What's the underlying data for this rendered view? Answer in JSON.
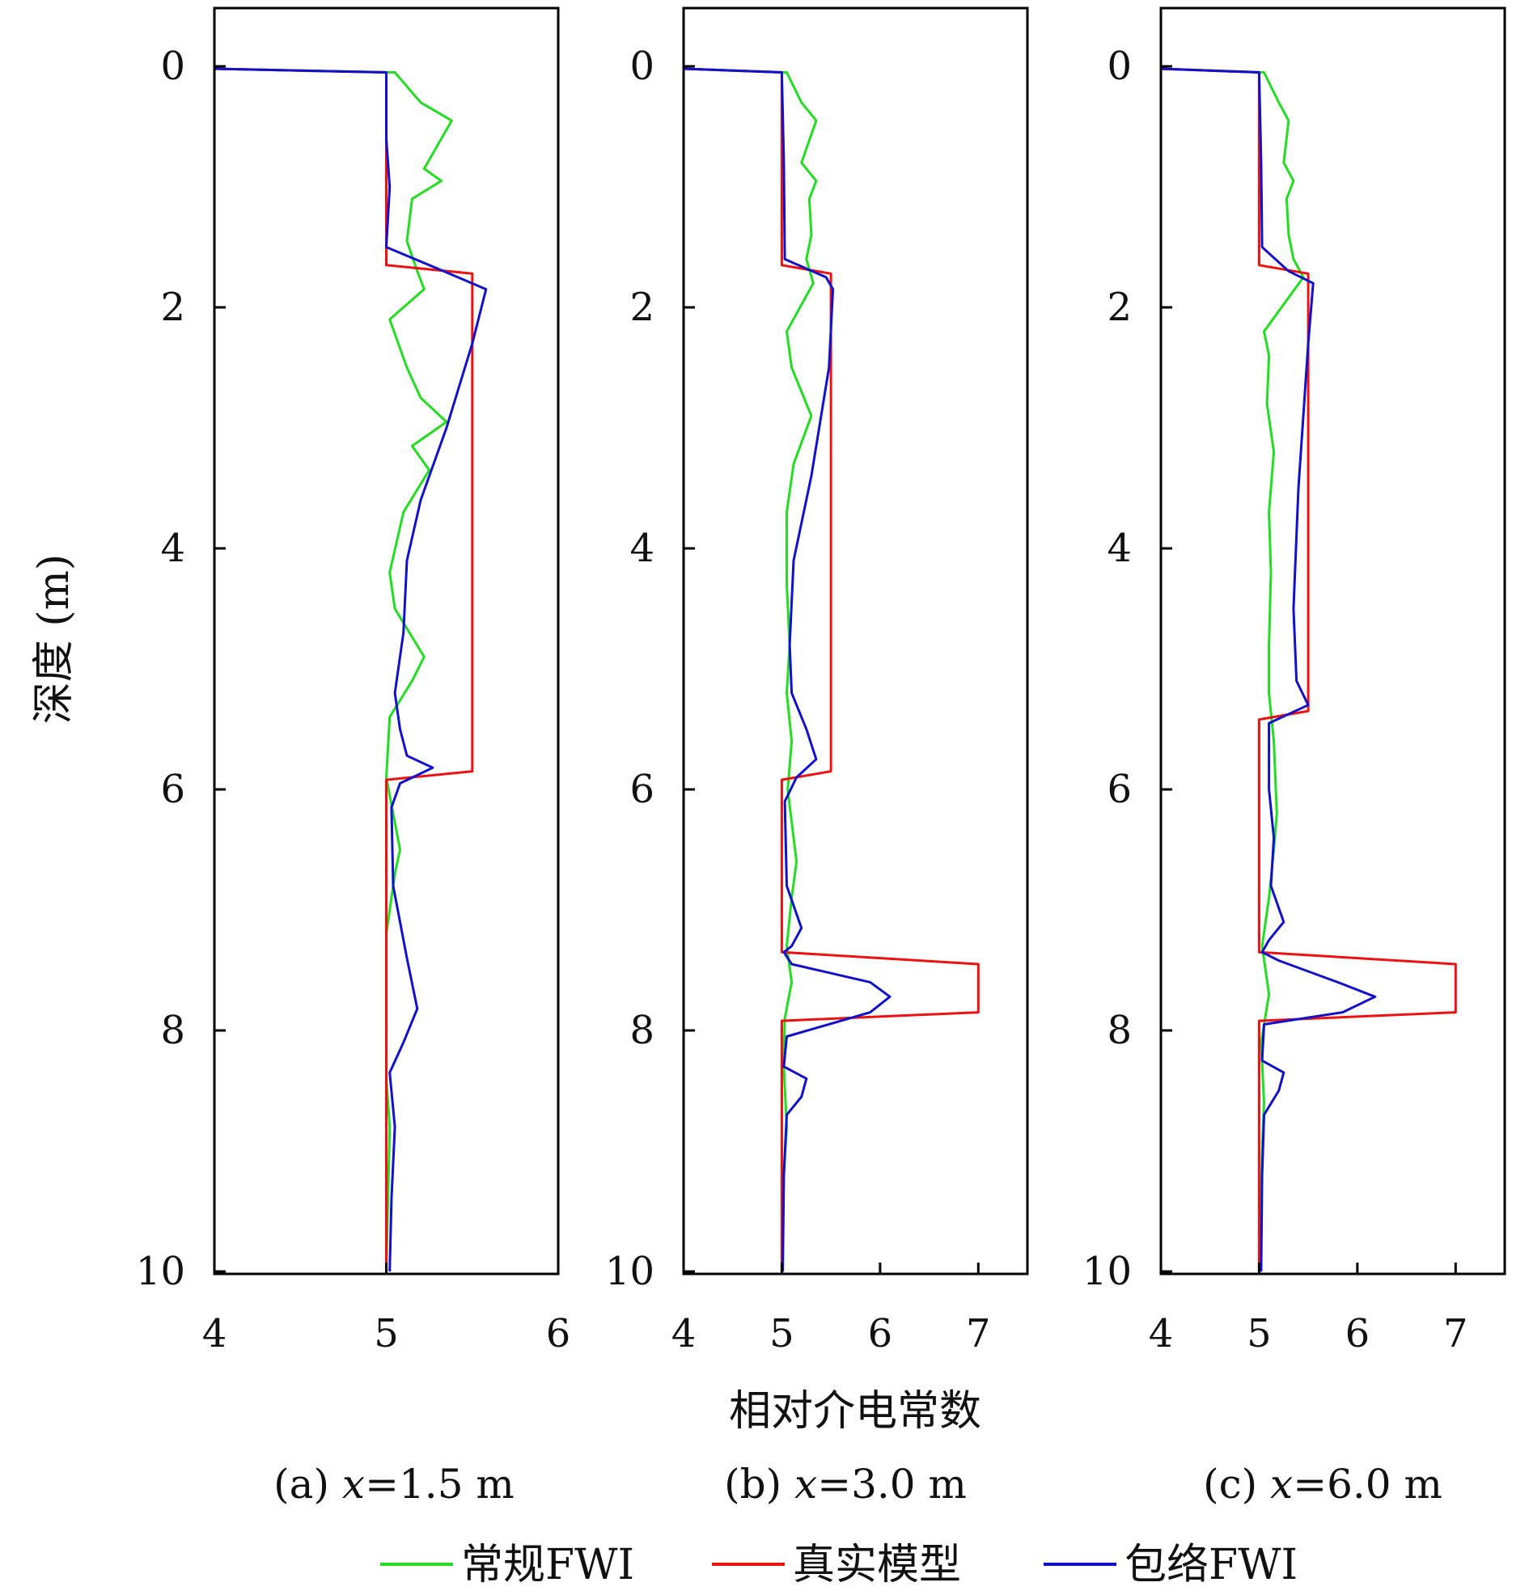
{
  "figure": {
    "ylabel": "深度 (m)",
    "xlabel": "相对介电常数",
    "legend": [
      {
        "label": "常规FWI",
        "color": "#22dd22"
      },
      {
        "label": "真实模型",
        "color": "#ee1111"
      },
      {
        "label": "包络FWI",
        "color": "#1111cc"
      }
    ]
  },
  "chart_data": [
    {
      "type": "line",
      "caption_prefix": "(a) ",
      "caption_var": "x",
      "caption_suffix": "=1.5 m",
      "xlim": [
        4,
        6
      ],
      "xticks": [
        "4",
        "5",
        "6"
      ],
      "ylim": [
        0,
        10
      ],
      "yticks": [
        "0",
        "2",
        "4",
        "6",
        "8",
        "10"
      ],
      "series": [
        {
          "name": "真实模型",
          "color": "#ee1111",
          "points": [
            [
              4,
              0.02
            ],
            [
              5,
              0.05
            ],
            [
              5,
              1.65
            ],
            [
              5.5,
              1.72
            ],
            [
              5.5,
              5.85
            ],
            [
              5,
              5.92
            ],
            [
              5,
              10
            ]
          ]
        },
        {
          "name": "包络FWI",
          "color": "#1111cc",
          "points": [
            [
              4,
              0.02
            ],
            [
              5,
              0.05
            ],
            [
              5,
              0.6
            ],
            [
              5.02,
              1.0
            ],
            [
              5,
              1.5
            ],
            [
              5.3,
              1.68
            ],
            [
              5.58,
              1.85
            ],
            [
              5.5,
              2.3
            ],
            [
              5.35,
              3.0
            ],
            [
              5.2,
              3.6
            ],
            [
              5.12,
              4.1
            ],
            [
              5.1,
              4.7
            ],
            [
              5.05,
              5.2
            ],
            [
              5.08,
              5.5
            ],
            [
              5.12,
              5.72
            ],
            [
              5.27,
              5.82
            ],
            [
              5.08,
              5.95
            ],
            [
              5.03,
              6.15
            ],
            [
              5.04,
              6.8
            ],
            [
              5.12,
              7.4
            ],
            [
              5.18,
              7.82
            ],
            [
              5.1,
              8.1
            ],
            [
              5.02,
              8.35
            ],
            [
              5.05,
              8.8
            ],
            [
              5.03,
              9.4
            ],
            [
              5.02,
              10
            ]
          ]
        },
        {
          "name": "常规FWI",
          "color": "#22dd22",
          "points": [
            [
              4,
              0.02
            ],
            [
              5.05,
              0.05
            ],
            [
              5.2,
              0.3
            ],
            [
              5.38,
              0.45
            ],
            [
              5.22,
              0.85
            ],
            [
              5.32,
              0.95
            ],
            [
              5.15,
              1.1
            ],
            [
              5.12,
              1.45
            ],
            [
              5.18,
              1.7
            ],
            [
              5.22,
              1.85
            ],
            [
              5.02,
              2.1
            ],
            [
              5.12,
              2.5
            ],
            [
              5.2,
              2.75
            ],
            [
              5.35,
              2.95
            ],
            [
              5.15,
              3.15
            ],
            [
              5.25,
              3.35
            ],
            [
              5.1,
              3.7
            ],
            [
              5.02,
              4.2
            ],
            [
              5.05,
              4.5
            ],
            [
              5.22,
              4.9
            ],
            [
              5.15,
              5.1
            ],
            [
              5.02,
              5.4
            ],
            [
              5,
              5.9
            ],
            [
              5.08,
              6.5
            ],
            [
              5.05,
              6.7
            ],
            [
              5,
              7.2
            ],
            [
              5,
              8.4
            ],
            [
              5.02,
              8.8
            ],
            [
              5.01,
              9.4
            ],
            [
              5,
              10
            ]
          ]
        }
      ]
    },
    {
      "type": "line",
      "caption_prefix": "(b) ",
      "caption_var": "x",
      "caption_suffix": "=3.0 m",
      "xlim": [
        4,
        7.5
      ],
      "xticks": [
        "4",
        "5",
        "6",
        "7"
      ],
      "ylim": [
        0,
        10
      ],
      "yticks": [
        "0",
        "2",
        "4",
        "6",
        "8",
        "10"
      ],
      "series": [
        {
          "name": "真实模型",
          "color": "#ee1111",
          "points": [
            [
              4,
              0.02
            ],
            [
              5,
              0.05
            ],
            [
              5,
              1.65
            ],
            [
              5.5,
              1.72
            ],
            [
              5.5,
              5.85
            ],
            [
              5,
              5.92
            ],
            [
              5,
              7.35
            ],
            [
              7,
              7.45
            ],
            [
              7,
              7.85
            ],
            [
              5,
              7.92
            ],
            [
              5,
              10
            ]
          ]
        },
        {
          "name": "包络FWI",
          "color": "#1111cc",
          "points": [
            [
              4,
              0.02
            ],
            [
              5,
              0.05
            ],
            [
              5.02,
              0.8
            ],
            [
              5.03,
              1.6
            ],
            [
              5.45,
              1.75
            ],
            [
              5.52,
              1.85
            ],
            [
              5.48,
              2.5
            ],
            [
              5.3,
              3.4
            ],
            [
              5.12,
              4.1
            ],
            [
              5.08,
              4.8
            ],
            [
              5.1,
              5.2
            ],
            [
              5.25,
              5.5
            ],
            [
              5.35,
              5.75
            ],
            [
              5.15,
              5.9
            ],
            [
              5.03,
              6.1
            ],
            [
              5.05,
              6.8
            ],
            [
              5.2,
              7.15
            ],
            [
              5.1,
              7.3
            ],
            [
              5.02,
              7.35
            ],
            [
              5.1,
              7.45
            ],
            [
              5.9,
              7.6
            ],
            [
              6.1,
              7.72
            ],
            [
              5.9,
              7.85
            ],
            [
              5.05,
              8.05
            ],
            [
              5.02,
              8.3
            ],
            [
              5.25,
              8.4
            ],
            [
              5.2,
              8.55
            ],
            [
              5.05,
              8.7
            ],
            [
              5.02,
              9.2
            ],
            [
              5.01,
              10
            ]
          ]
        },
        {
          "name": "常规FWI",
          "color": "#22dd22",
          "points": [
            [
              4,
              0.02
            ],
            [
              5.05,
              0.05
            ],
            [
              5.2,
              0.3
            ],
            [
              5.35,
              0.45
            ],
            [
              5.2,
              0.8
            ],
            [
              5.35,
              0.95
            ],
            [
              5.28,
              1.1
            ],
            [
              5.3,
              1.4
            ],
            [
              5.25,
              1.6
            ],
            [
              5.32,
              1.8
            ],
            [
              5.05,
              2.2
            ],
            [
              5.1,
              2.5
            ],
            [
              5.3,
              2.9
            ],
            [
              5.12,
              3.3
            ],
            [
              5.05,
              3.7
            ],
            [
              5.05,
              4.3
            ],
            [
              5.08,
              4.8
            ],
            [
              5.05,
              5.2
            ],
            [
              5.1,
              5.6
            ],
            [
              5.06,
              6
            ],
            [
              5.15,
              6.6
            ],
            [
              5.1,
              6.9
            ],
            [
              5.05,
              7.3
            ],
            [
              5.1,
              7.6
            ],
            [
              5.03,
              7.9
            ],
            [
              5.02,
              8.3
            ],
            [
              5.05,
              8.8
            ],
            [
              5.02,
              9.2
            ],
            [
              5,
              10
            ]
          ]
        }
      ]
    },
    {
      "type": "line",
      "caption_prefix": "(c) ",
      "caption_var": "x",
      "caption_suffix": "=6.0 m",
      "xlim": [
        4,
        7.5
      ],
      "xticks": [
        "4",
        "5",
        "6",
        "7"
      ],
      "ylim": [
        0,
        10
      ],
      "yticks": [
        "0",
        "2",
        "4",
        "6",
        "8",
        "10"
      ],
      "series": [
        {
          "name": "真实模型",
          "color": "#ee1111",
          "points": [
            [
              4,
              0.02
            ],
            [
              5,
              0.05
            ],
            [
              5,
              1.65
            ],
            [
              5.5,
              1.72
            ],
            [
              5.5,
              5.35
            ],
            [
              5,
              5.42
            ],
            [
              5,
              7.35
            ],
            [
              7,
              7.45
            ],
            [
              7,
              7.85
            ],
            [
              5,
              7.92
            ],
            [
              5,
              10
            ]
          ]
        },
        {
          "name": "包络FWI",
          "color": "#1111cc",
          "points": [
            [
              4,
              0.02
            ],
            [
              5,
              0.05
            ],
            [
              5.02,
              0.8
            ],
            [
              5.03,
              1.5
            ],
            [
              5.3,
              1.7
            ],
            [
              5.55,
              1.8
            ],
            [
              5.5,
              2.3
            ],
            [
              5.4,
              3.5
            ],
            [
              5.35,
              4.5
            ],
            [
              5.38,
              5.1
            ],
            [
              5.5,
              5.3
            ],
            [
              5.1,
              5.45
            ],
            [
              5.1,
              6.0
            ],
            [
              5.15,
              6.4
            ],
            [
              5.12,
              6.8
            ],
            [
              5.25,
              7.1
            ],
            [
              5.1,
              7.25
            ],
            [
              5.03,
              7.35
            ],
            [
              5.2,
              7.42
            ],
            [
              5.8,
              7.6
            ],
            [
              6.18,
              7.72
            ],
            [
              5.85,
              7.85
            ],
            [
              5.05,
              7.95
            ],
            [
              5.03,
              8.25
            ],
            [
              5.25,
              8.35
            ],
            [
              5.2,
              8.5
            ],
            [
              5.05,
              8.7
            ],
            [
              5.03,
              9.2
            ],
            [
              5.02,
              10
            ]
          ]
        },
        {
          "name": "常规FWI",
          "color": "#22dd22",
          "points": [
            [
              4,
              0.02
            ],
            [
              5.05,
              0.05
            ],
            [
              5.2,
              0.3
            ],
            [
              5.3,
              0.45
            ],
            [
              5.25,
              0.8
            ],
            [
              5.35,
              0.95
            ],
            [
              5.28,
              1.1
            ],
            [
              5.3,
              1.4
            ],
            [
              5.35,
              1.6
            ],
            [
              5.45,
              1.75
            ],
            [
              5.05,
              2.2
            ],
            [
              5.1,
              2.4
            ],
            [
              5.08,
              2.8
            ],
            [
              5.15,
              3.2
            ],
            [
              5.1,
              3.7
            ],
            [
              5.12,
              4.2
            ],
            [
              5.1,
              4.8
            ],
            [
              5.1,
              5.2
            ],
            [
              5.15,
              5.6
            ],
            [
              5.18,
              6.2
            ],
            [
              5.15,
              6.5
            ],
            [
              5.1,
              6.9
            ],
            [
              5.03,
              7.3
            ],
            [
              5.1,
              7.7
            ],
            [
              5.02,
              8.1
            ],
            [
              5.05,
              8.6
            ],
            [
              5.03,
              9.0
            ],
            [
              5.02,
              9.4
            ],
            [
              5,
              10
            ]
          ]
        }
      ]
    }
  ]
}
